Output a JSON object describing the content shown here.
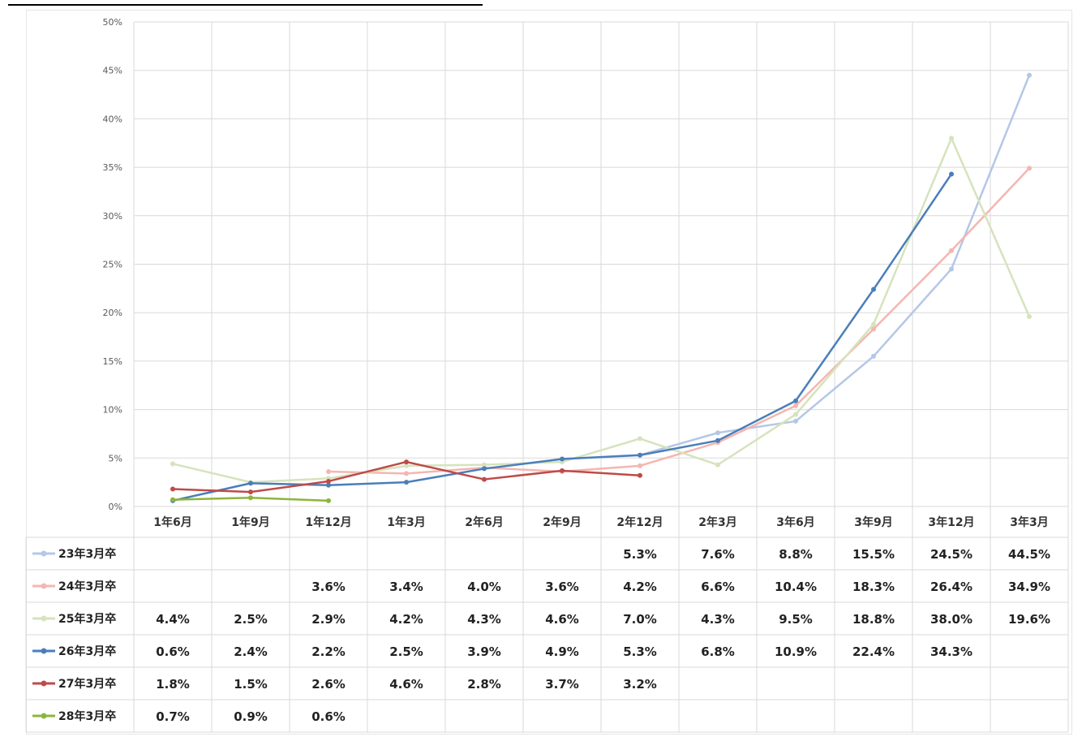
{
  "chart_data": {
    "type": "line",
    "title": "",
    "xlabel": "",
    "ylabel": "",
    "ylim": [
      0,
      50
    ],
    "y_ticks": [
      "0%",
      "5%",
      "10%",
      "15%",
      "20%",
      "25%",
      "30%",
      "35%",
      "40%",
      "45%",
      "50%"
    ],
    "grid": true,
    "legend": "data table below chart",
    "categories": [
      "1年6月",
      "1年9月",
      "1年12月",
      "1年3月",
      "2年6月",
      "2年9月",
      "2年12月",
      "2年3月",
      "3年6月",
      "3年9月",
      "3年12月",
      "3年3月"
    ],
    "series": [
      {
        "name": "23年3月卒",
        "color": "#b4c7e7",
        "values": [
          null,
          null,
          null,
          null,
          null,
          null,
          5.3,
          7.6,
          8.8,
          15.5,
          24.5,
          44.5
        ],
        "labels": [
          "",
          "",
          "",
          "",
          "",
          "",
          "5.3%",
          "7.6%",
          "8.8%",
          "15.5%",
          "24.5%",
          "44.5%"
        ]
      },
      {
        "name": "24年3月卒",
        "color": "#f4b6b0",
        "values": [
          null,
          null,
          3.6,
          3.4,
          4.0,
          3.6,
          4.2,
          6.6,
          10.4,
          18.3,
          26.4,
          34.9
        ],
        "labels": [
          "",
          "",
          "3.6%",
          "3.4%",
          "4.0%",
          "3.6%",
          "4.2%",
          "6.6%",
          "10.4%",
          "18.3%",
          "26.4%",
          "34.9%"
        ]
      },
      {
        "name": "25年3月卒",
        "color": "#d6e3bc",
        "values": [
          4.4,
          2.5,
          2.9,
          4.2,
          4.3,
          4.6,
          7.0,
          4.3,
          9.5,
          18.8,
          38.0,
          19.6
        ],
        "labels": [
          "4.4%",
          "2.5%",
          "2.9%",
          "4.2%",
          "4.3%",
          "4.6%",
          "7.0%",
          "4.3%",
          "9.5%",
          "18.8%",
          "38.0%",
          "19.6%"
        ]
      },
      {
        "name": "26年3月卒",
        "color": "#4a7ebb",
        "values": [
          0.6,
          2.4,
          2.2,
          2.5,
          3.9,
          4.9,
          5.3,
          6.8,
          10.9,
          22.4,
          34.3,
          null
        ],
        "labels": [
          "0.6%",
          "2.4%",
          "2.2%",
          "2.5%",
          "3.9%",
          "4.9%",
          "5.3%",
          "6.8%",
          "10.9%",
          "22.4%",
          "34.3%",
          ""
        ]
      },
      {
        "name": "27年3月卒",
        "color": "#be4b48",
        "values": [
          1.8,
          1.5,
          2.6,
          4.6,
          2.8,
          3.7,
          3.2,
          null,
          null,
          null,
          null,
          null
        ],
        "labels": [
          "1.8%",
          "1.5%",
          "2.6%",
          "4.6%",
          "2.8%",
          "3.7%",
          "3.2%",
          "",
          "",
          "",
          "",
          ""
        ]
      },
      {
        "name": "28年3月卒",
        "color": "#8db43e",
        "values": [
          0.7,
          0.9,
          0.6,
          null,
          null,
          null,
          null,
          null,
          null,
          null,
          null,
          null
        ],
        "labels": [
          "0.7%",
          "0.9%",
          "0.6%",
          "",
          "",
          "",
          "",
          "",
          "",
          "",
          "",
          ""
        ]
      }
    ]
  }
}
